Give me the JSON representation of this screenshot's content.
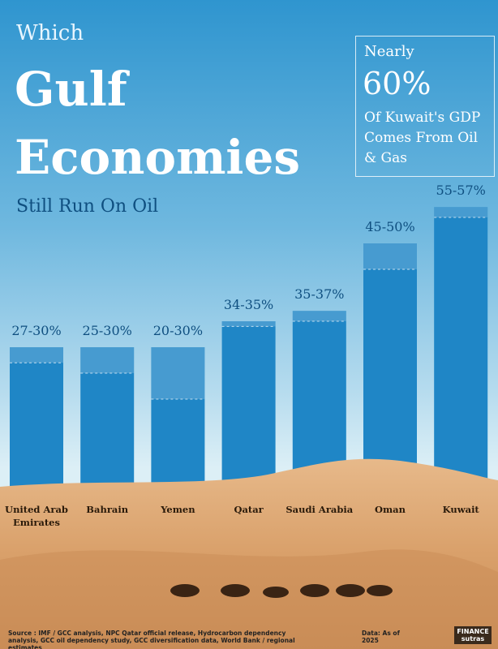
{
  "chart_data": {
    "type": "range-bar",
    "kicker": "Which",
    "title": "Gulf Economies",
    "subtitle": "Still Run On Oil",
    "callout": {
      "lead": "Nearly",
      "figure": "60%",
      "text": "Of Kuwait's GDP Comes From Oil & Gas"
    },
    "categories": [
      "United Arab Emirates",
      "Bahrain",
      "Yemen",
      "Qatar",
      "Saudi Arabia",
      "Oman",
      "Kuwait"
    ],
    "values": [
      [
        27,
        30
      ],
      [
        25,
        30
      ],
      [
        20,
        30
      ],
      [
        34,
        35
      ],
      [
        35,
        37
      ],
      [
        45,
        50
      ],
      [
        55,
        57
      ]
    ],
    "value_labels": [
      "27-30%",
      "25-30%",
      "20-30%",
      "34-35%",
      "35-37%",
      "45-50%",
      "55-57%"
    ],
    "color": "#1f86c6",
    "source": "Source : IMF / GCC analysis, NPC Qatar official release, Hydrocarbon dependency analysis, GCC oil dependency study, GCC diversification data, World Bank / regional estimates",
    "data_note": "Data: As of 2025",
    "brand": "FINANCE sutras"
  }
}
